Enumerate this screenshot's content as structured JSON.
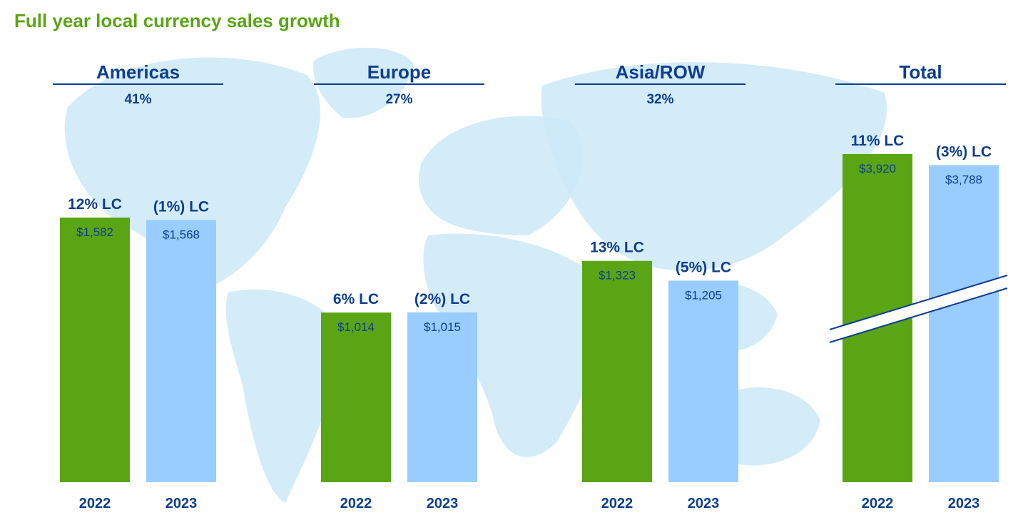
{
  "title": "Full year local currency sales growth",
  "colors": {
    "title": "#5aa514",
    "bar_2022": "#5aa514",
    "bar_2023": "#99ccff",
    "text_blue": "#0d3e8f",
    "map": "#cde9f7"
  },
  "chart_data": [
    {
      "type": "bar",
      "region": "Americas",
      "share": "41%",
      "categories": [
        "2022",
        "2023"
      ],
      "values": [
        1582,
        1568
      ],
      "value_labels": [
        "$1,582",
        "$1,568"
      ],
      "growth_labels": [
        "12% LC",
        "(1%) LC"
      ],
      "ylim": [
        0,
        4000
      ],
      "axis_break": false
    },
    {
      "type": "bar",
      "region": "Europe",
      "share": "27%",
      "categories": [
        "2022",
        "2023"
      ],
      "values": [
        1014,
        1015
      ],
      "value_labels": [
        "$1,014",
        "$1,015"
      ],
      "growth_labels": [
        "6% LC",
        "(2%) LC"
      ],
      "ylim": [
        0,
        4000
      ],
      "axis_break": false
    },
    {
      "type": "bar",
      "region": "Asia/ROW",
      "share": "32%",
      "categories": [
        "2022",
        "2023"
      ],
      "values": [
        1323,
        1205
      ],
      "value_labels": [
        "$1,323",
        "$1,205"
      ],
      "growth_labels": [
        "13% LC",
        "(5%) LC"
      ],
      "ylim": [
        0,
        4000
      ],
      "axis_break": false
    },
    {
      "type": "bar",
      "region": "Total",
      "share": "",
      "categories": [
        "2022",
        "2023"
      ],
      "values": [
        3920,
        3788
      ],
      "value_labels": [
        "$3,920",
        "$3,788"
      ],
      "growth_labels": [
        "11% LC",
        "(3%) LC"
      ],
      "axis_break": true
    }
  ]
}
